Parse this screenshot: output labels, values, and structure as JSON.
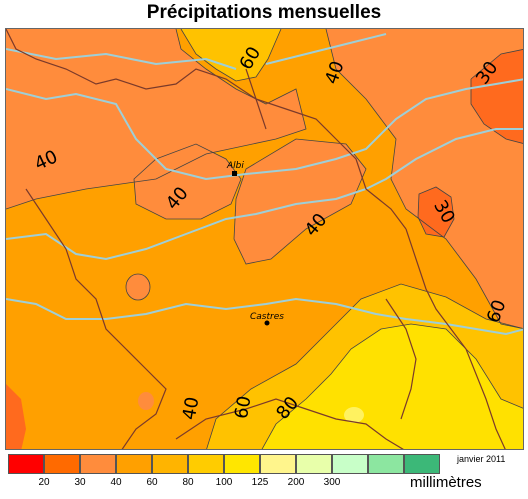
{
  "title": "Précipitations mensuelles",
  "date": "janvier 2011",
  "unit": "millimètres",
  "colors": {
    "base": "#FFA000",
    "band_30_40": "#FF8C3C",
    "band_lt30": "#FF6A1E",
    "band_60_80": "#FFC200",
    "band_80_100": "#FFE100",
    "band_100_125": "#FFF260",
    "rivers": "#9ECFD8",
    "borders": "#7B3A2A",
    "contours": "#444444"
  },
  "legend": {
    "swatches": [
      {
        "color": "#FF0000"
      },
      {
        "color": "#FF6A00"
      },
      {
        "color": "#FF8C3C"
      },
      {
        "color": "#FFA000"
      },
      {
        "color": "#FFB400"
      },
      {
        "color": "#FFCC00"
      },
      {
        "color": "#FFE600"
      },
      {
        "color": "#FFF58C"
      },
      {
        "color": "#E8FFAA"
      },
      {
        "color": "#C8FFC8"
      },
      {
        "color": "#8CE6A0"
      },
      {
        "color": "#3CB878"
      }
    ],
    "ticks": [
      "20",
      "30",
      "40",
      "60",
      "80",
      "100",
      "125",
      "200",
      "300"
    ]
  },
  "contour_labels": [
    "60",
    "40",
    "30",
    "40",
    "40",
    "40",
    "30",
    "60",
    "40",
    "60",
    "80"
  ],
  "cities": [
    {
      "name": "Albi"
    },
    {
      "name": "Castres"
    }
  ]
}
